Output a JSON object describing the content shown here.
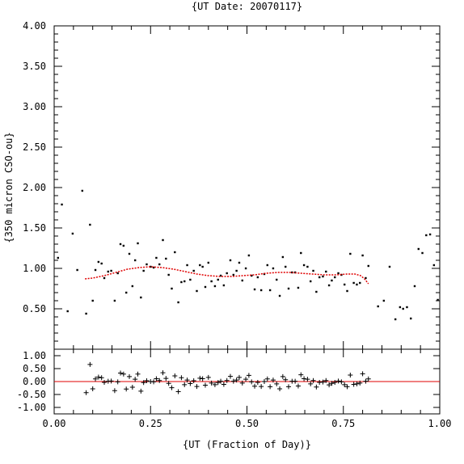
{
  "chart_data": [
    {
      "type": "scatter",
      "title": "{UT Date: 20070117}",
      "ylabel": "{350 micron CSO-ou}",
      "xlim": [
        0.0,
        1.0
      ],
      "ylim": [
        0.0,
        4.0
      ],
      "yticks": [
        0.5,
        1.0,
        1.5,
        2.0,
        2.5,
        3.0,
        3.5,
        4.0
      ],
      "ytick_labels": [
        "0.50",
        "1.00",
        "1.50",
        "2.00",
        "2.50",
        "3.00",
        "3.50",
        "4.00"
      ],
      "series": [
        {
          "kind": "points",
          "color": "#000000",
          "x": [
            0.01,
            0.02,
            0.035,
            0.048,
            0.06,
            0.073,
            0.083,
            0.093,
            0.1,
            0.107,
            0.115,
            0.123,
            0.13,
            0.14,
            0.148,
            0.157,
            0.165,
            0.172,
            0.18,
            0.187,
            0.195,
            0.203,
            0.21,
            0.217,
            0.225,
            0.232,
            0.24,
            0.25,
            0.258,
            0.265,
            0.273,
            0.282,
            0.29,
            0.297,
            0.305,
            0.313,
            0.322,
            0.33,
            0.338,
            0.345,
            0.353,
            0.362,
            0.37,
            0.378,
            0.385,
            0.392,
            0.4,
            0.408,
            0.417,
            0.425,
            0.432,
            0.44,
            0.448,
            0.457,
            0.465,
            0.473,
            0.48,
            0.488,
            0.497,
            0.505,
            0.512,
            0.52,
            0.528,
            0.537,
            0.545,
            0.553,
            0.56,
            0.568,
            0.577,
            0.585,
            0.593,
            0.6,
            0.608,
            0.617,
            0.625,
            0.633,
            0.64,
            0.648,
            0.657,
            0.665,
            0.672,
            0.68,
            0.688,
            0.697,
            0.705,
            0.713,
            0.72,
            0.728,
            0.737,
            0.745,
            0.753,
            0.76,
            0.768,
            0.777,
            0.785,
            0.793,
            0.8,
            0.808,
            0.815,
            0.84,
            0.855,
            0.87,
            0.885,
            0.897,
            0.905,
            0.915,
            0.925,
            0.935,
            0.945,
            0.955,
            0.965,
            0.975,
            0.985,
            0.995
          ],
          "y": [
            1.13,
            1.79,
            0.47,
            1.43,
            0.98,
            1.96,
            0.44,
            1.54,
            0.6,
            0.98,
            1.08,
            1.06,
            0.88,
            0.96,
            0.97,
            0.6,
            0.94,
            1.3,
            1.28,
            0.7,
            1.18,
            0.78,
            1.1,
            1.31,
            0.64,
            0.97,
            1.05,
            1.02,
            1.01,
            1.13,
            1.05,
            1.35,
            1.12,
            0.92,
            0.75,
            1.2,
            0.58,
            0.83,
            0.84,
            1.04,
            0.86,
            0.97,
            0.72,
            1.04,
            1.02,
            0.77,
            1.07,
            0.84,
            0.78,
            0.86,
            0.91,
            0.79,
            0.94,
            1.1,
            0.92,
            0.97,
            1.07,
            0.85,
            1.0,
            1.16,
            0.91,
            0.74,
            0.89,
            0.73,
            0.93,
            1.04,
            0.73,
            1.0,
            0.86,
            0.66,
            1.14,
            1.02,
            0.75,
            0.95,
            0.95,
            0.76,
            1.19,
            1.04,
            1.02,
            0.84,
            0.97,
            0.71,
            0.89,
            0.9,
            0.96,
            0.79,
            0.85,
            0.89,
            0.94,
            0.92,
            0.8,
            0.72,
            1.18,
            0.82,
            0.8,
            0.82,
            1.16,
            0.88,
            1.03,
            0.53,
            0.6,
            1.02,
            0.37,
            0.52,
            0.5,
            0.52,
            0.38,
            0.78,
            1.24,
            1.19,
            1.41,
            1.42,
            1.04,
            0.61
          ]
        },
        {
          "kind": "fit",
          "color": "#e00000",
          "x": [
            0.08,
            0.1,
            0.13,
            0.16,
            0.19,
            0.22,
            0.25,
            0.28,
            0.31,
            0.34,
            0.37,
            0.4,
            0.43,
            0.46,
            0.49,
            0.52,
            0.55,
            0.58,
            0.61,
            0.64,
            0.67,
            0.7,
            0.73,
            0.76,
            0.78,
            0.795,
            0.805,
            0.815
          ],
          "y": [
            0.87,
            0.88,
            0.91,
            0.95,
            0.99,
            1.01,
            1.02,
            1.01,
            0.99,
            0.96,
            0.93,
            0.91,
            0.9,
            0.9,
            0.91,
            0.92,
            0.94,
            0.95,
            0.95,
            0.94,
            0.93,
            0.92,
            0.92,
            0.93,
            0.93,
            0.91,
            0.87,
            0.81
          ]
        }
      ]
    },
    {
      "type": "scatter",
      "xlabel": "{UT (Fraction of Day)}",
      "xlim": [
        0.0,
        1.0
      ],
      "ylim": [
        -1.25,
        1.25
      ],
      "xticks": [
        0.0,
        0.25,
        0.5,
        0.75,
        1.0
      ],
      "xtick_labels": [
        "0.00",
        "0.25",
        "0.50",
        "0.75",
        "1.00"
      ],
      "yticks": [
        -1.0,
        -0.5,
        0.0,
        0.5,
        1.0
      ],
      "ytick_labels": [
        "-1.00",
        "-0.50",
        "0.00",
        "0.50",
        "1.00"
      ],
      "zero_line_color": "#e00000",
      "series": [
        {
          "kind": "residuals",
          "color": "#000000",
          "x": [
            0.083,
            0.093,
            0.1,
            0.107,
            0.115,
            0.123,
            0.13,
            0.14,
            0.148,
            0.157,
            0.165,
            0.172,
            0.18,
            0.187,
            0.195,
            0.203,
            0.21,
            0.217,
            0.225,
            0.232,
            0.24,
            0.25,
            0.258,
            0.265,
            0.273,
            0.282,
            0.29,
            0.297,
            0.305,
            0.313,
            0.322,
            0.33,
            0.338,
            0.345,
            0.353,
            0.362,
            0.37,
            0.378,
            0.385,
            0.392,
            0.4,
            0.408,
            0.417,
            0.425,
            0.432,
            0.44,
            0.448,
            0.457,
            0.465,
            0.473,
            0.48,
            0.488,
            0.497,
            0.505,
            0.512,
            0.52,
            0.528,
            0.537,
            0.545,
            0.553,
            0.56,
            0.568,
            0.577,
            0.585,
            0.593,
            0.6,
            0.608,
            0.617,
            0.625,
            0.633,
            0.64,
            0.648,
            0.657,
            0.665,
            0.672,
            0.68,
            0.688,
            0.697,
            0.705,
            0.713,
            0.72,
            0.728,
            0.737,
            0.745,
            0.753,
            0.76,
            0.768,
            0.777,
            0.785,
            0.793,
            0.8,
            0.808,
            0.815
          ],
          "y": [
            -0.43,
            0.66,
            -0.28,
            0.1,
            0.17,
            0.15,
            -0.03,
            0.01,
            0.02,
            -0.35,
            -0.01,
            0.33,
            0.29,
            -0.29,
            0.19,
            -0.22,
            0.09,
            0.29,
            -0.37,
            -0.04,
            0.03,
            0.0,
            -0.01,
            0.11,
            0.04,
            0.34,
            0.12,
            -0.07,
            -0.24,
            0.22,
            -0.39,
            0.15,
            -0.12,
            0.06,
            -0.08,
            0.03,
            -0.19,
            0.13,
            0.11,
            -0.14,
            0.16,
            -0.06,
            -0.12,
            -0.04,
            0.01,
            -0.11,
            0.04,
            0.2,
            0.01,
            0.06,
            0.16,
            -0.06,
            0.09,
            0.24,
            -0.01,
            -0.18,
            -0.03,
            -0.19,
            0.0,
            0.1,
            -0.2,
            0.06,
            -0.09,
            -0.28,
            0.19,
            0.07,
            -0.2,
            0.01,
            0.01,
            -0.17,
            0.26,
            0.11,
            0.09,
            -0.09,
            0.04,
            -0.21,
            -0.03,
            -0.02,
            0.04,
            -0.13,
            -0.07,
            -0.03,
            0.02,
            -0.01,
            -0.12,
            -0.2,
            0.25,
            -0.11,
            -0.09,
            -0.06,
            0.3,
            0.01,
            0.1
          ]
        }
      ]
    }
  ]
}
